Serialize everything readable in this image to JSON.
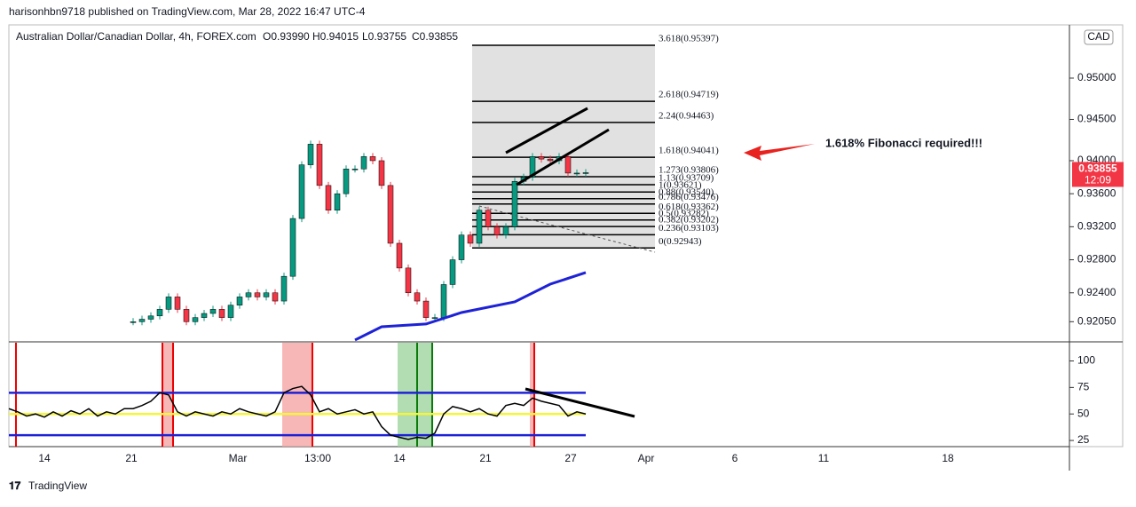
{
  "header": {
    "publisher": "harisonhbn9718 published on TradingView.com, Mar 28, 2022 16:47 UTC-4",
    "symbol": "Australian Dollar/Canadian Dollar, 4h, FOREX.com",
    "ohlc": [
      "O0.93990",
      "H0.94015",
      "L0.93755",
      "C0.93855"
    ],
    "currency": "CAD",
    "price_label": "0.93855",
    "countdown": "12:09"
  },
  "footer": "TradingView",
  "chart_data": [
    {
      "type": "candlestick",
      "values": [
        0.9205,
        0.9208,
        0.9212,
        0.922,
        0.9235,
        0.922,
        0.9205,
        0.921,
        0.9215,
        0.922,
        0.921,
        0.9225,
        0.9235,
        0.924,
        0.9235,
        0.924,
        0.923,
        0.926,
        0.933,
        0.9395,
        0.942,
        0.937,
        0.934,
        0.936,
        0.939,
        0.939,
        0.9405,
        0.94,
        0.937,
        0.93,
        0.927,
        0.924,
        0.923,
        0.921,
        0.921,
        0.925,
        0.928,
        0.931,
        0.93,
        0.934,
        0.932,
        0.931,
        0.932,
        0.9375,
        0.938,
        0.9405,
        0.9402,
        0.94,
        0.9405,
        0.9385,
        0.9385,
        0.93855
      ],
      "up_color": "#089981",
      "down_color": "#f23645",
      "ma": {
        "color": "#1e22d6",
        "values": [
          0.91828,
          0.91989,
          0.92022,
          0.92161,
          0.9229,
          0.92505,
          0.92645
        ]
      },
      "ylim": [
        0.91806,
        0.95645
      ],
      "yticks": [
        {
          "value": 0.9205,
          "label": "0.92050"
        },
        {
          "value": 0.924,
          "label": "0.92400"
        },
        {
          "value": 0.928,
          "label": "0.92800"
        },
        {
          "value": 0.932,
          "label": "0.93200"
        },
        {
          "value": 0.936,
          "label": "0.93600"
        },
        {
          "value": 0.94,
          "label": "0.94000"
        },
        {
          "value": 0.945,
          "label": "0.94500"
        },
        {
          "value": 0.95,
          "label": "0.95000"
        }
      ],
      "fib_levels": [
        {
          "value": 0.95397,
          "label": "3.618(0.95397)"
        },
        {
          "value": 0.94719,
          "label": "2.618(0.94719)"
        },
        {
          "value": 0.94463,
          "label": "2.24(0.94463)"
        },
        {
          "value": 0.94041,
          "label": "1.618(0.94041)"
        },
        {
          "value": 0.93806,
          "label": "1.273(0.93806)"
        },
        {
          "value": 0.93709,
          "label": "1.13(0.93709)"
        },
        {
          "value": 0.93621,
          "label": "1(0.93621)"
        },
        {
          "value": 0.9354,
          "label": "0.88(0.93540)"
        },
        {
          "value": 0.93476,
          "label": "0.786(0.93476)"
        },
        {
          "value": 0.93362,
          "label": "0.618(0.93362)"
        },
        {
          "value": 0.93282,
          "label": "0.5(0.93282)"
        },
        {
          "value": 0.93202,
          "label": "0.382(0.93202)"
        },
        {
          "value": 0.93103,
          "label": "0.236(0.93103)"
        },
        {
          "value": 0.92943,
          "label": "0(0.92943)"
        }
      ],
      "annotation": "1.618% Fibonacci required!!!"
    },
    {
      "type": "line",
      "color": "#000000",
      "values": [
        55,
        52,
        48,
        50,
        47,
        52,
        48,
        53,
        50,
        55,
        48,
        52,
        50,
        55,
        55,
        58,
        62,
        70,
        68,
        52,
        48,
        52,
        50,
        48,
        52,
        50,
        55,
        52,
        50,
        48,
        52,
        70,
        74,
        76,
        68,
        52,
        55,
        50,
        52,
        54,
        50,
        52,
        38,
        30,
        28,
        26,
        28,
        27,
        32,
        50,
        57,
        55,
        52,
        55,
        50,
        48,
        58,
        60,
        58,
        65,
        62,
        60,
        58,
        48,
        52,
        50
      ],
      "bands": [
        30,
        50,
        70
      ],
      "band_colors": [
        "#1e22d6",
        "#f5f53a",
        "#1e22d6"
      ],
      "ylim": [
        19.2,
        118
      ],
      "yticks": [
        25,
        50,
        75,
        100
      ]
    }
  ],
  "x_labels": [
    "14",
    "21",
    "Mar",
    "13:00",
    "14",
    "21",
    "27",
    "Apr",
    "6",
    "11",
    "18"
  ]
}
